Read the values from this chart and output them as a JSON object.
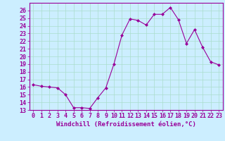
{
  "x": [
    0,
    1,
    2,
    3,
    4,
    5,
    6,
    7,
    8,
    9,
    10,
    11,
    12,
    13,
    14,
    15,
    16,
    17,
    18,
    19,
    20,
    21,
    22,
    23
  ],
  "y": [
    16.3,
    16.1,
    16.0,
    15.9,
    15.0,
    13.3,
    13.3,
    13.2,
    14.6,
    15.9,
    19.0,
    22.8,
    24.9,
    24.7,
    24.1,
    25.5,
    25.5,
    26.4,
    24.8,
    21.7,
    23.5,
    21.2,
    19.3,
    18.9
  ],
  "line_color": "#990099",
  "marker": "D",
  "marker_size": 2,
  "bg_color": "#cceeff",
  "grid_color": "#aaddcc",
  "xlabel": "Windchill (Refroidissement éolien,°C)",
  "ylim": [
    13,
    27
  ],
  "xlim_min": -0.5,
  "xlim_max": 23.5,
  "yticks": [
    13,
    14,
    15,
    16,
    17,
    18,
    19,
    20,
    21,
    22,
    23,
    24,
    25,
    26
  ],
  "xticks": [
    0,
    1,
    2,
    3,
    4,
    5,
    6,
    7,
    8,
    9,
    10,
    11,
    12,
    13,
    14,
    15,
    16,
    17,
    18,
    19,
    20,
    21,
    22,
    23
  ],
  "tick_color": "#990099",
  "label_color": "#990099",
  "spine_color": "#990099",
  "font_size": 6,
  "xlabel_fontsize": 6.5
}
